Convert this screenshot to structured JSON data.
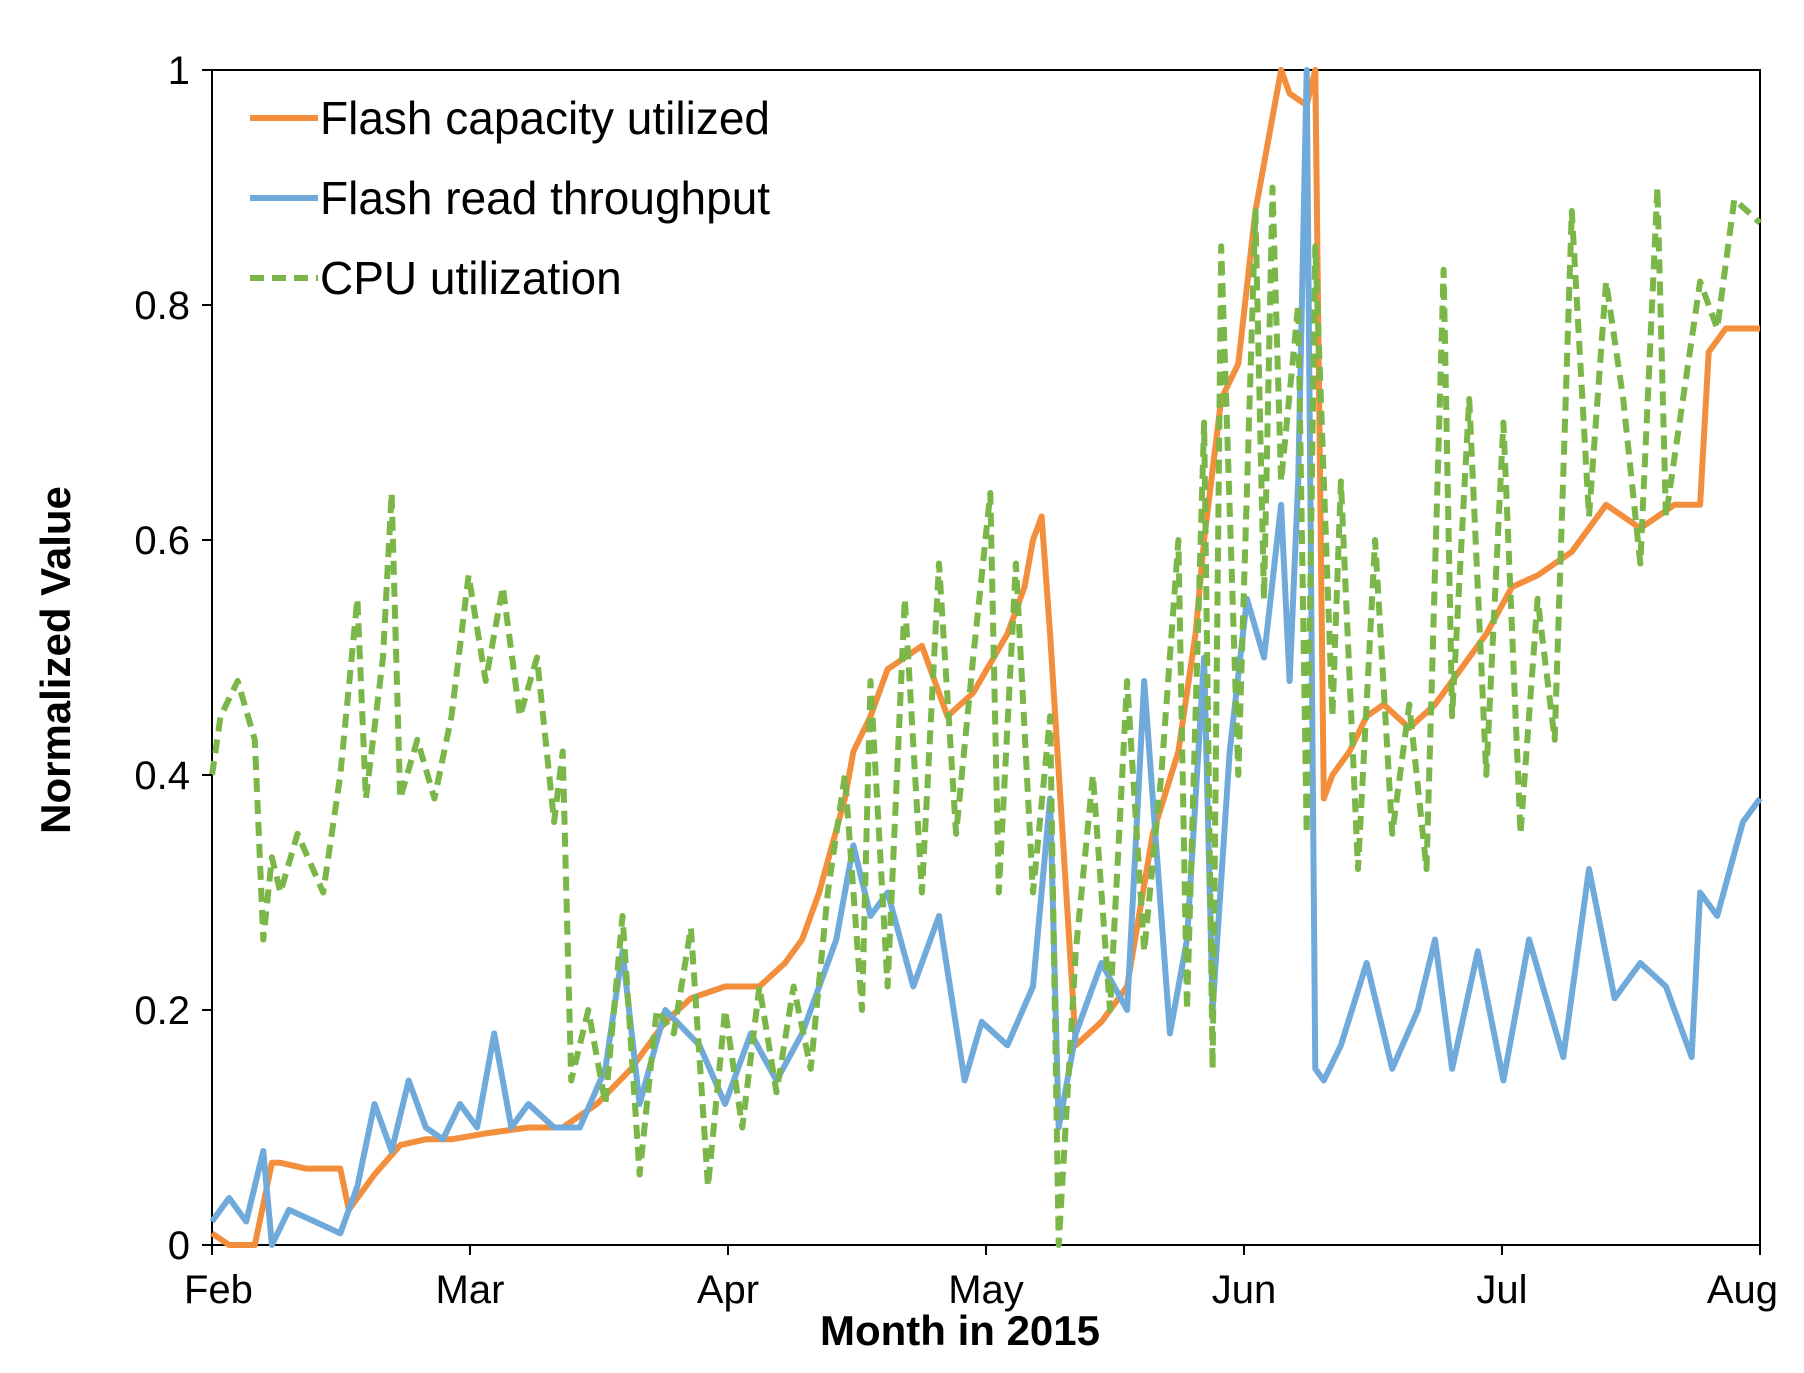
{
  "chart_data": {
    "type": "line",
    "title": "",
    "xlabel": "Month  in 2015",
    "ylabel": "Normalized Value",
    "x_ticks": [
      "Feb",
      "Mar",
      "Apr",
      "May",
      "Jun",
      "Jul",
      "Aug"
    ],
    "xlim": [
      "2015-02-01",
      "2015-08-01"
    ],
    "ylim": [
      0,
      1
    ],
    "y_ticks": [
      0,
      0.2,
      0.4,
      0.6,
      0.8,
      1
    ],
    "y_tick_labels": [
      "0",
      "0.2",
      "0.4",
      "0.6",
      "0.8",
      "1"
    ],
    "grid": false,
    "legend": "top-left",
    "series": [
      {
        "name": "Flash capacity utilized",
        "color": "#F28E3C",
        "style": "solid",
        "x": [
          "2015-02-01",
          "2015-02-03",
          "2015-02-06",
          "2015-02-08",
          "2015-02-09",
          "2015-02-12",
          "2015-02-16",
          "2015-02-17",
          "2015-02-20",
          "2015-02-23",
          "2015-02-26",
          "2015-03-01",
          "2015-03-05",
          "2015-03-10",
          "2015-03-14",
          "2015-03-18",
          "2015-03-22",
          "2015-03-26",
          "2015-03-29",
          "2015-04-02",
          "2015-04-06",
          "2015-04-09",
          "2015-04-11",
          "2015-04-13",
          "2015-04-16",
          "2015-04-17",
          "2015-04-19",
          "2015-04-21",
          "2015-04-23",
          "2015-04-25",
          "2015-04-28",
          "2015-05-01",
          "2015-05-05",
          "2015-05-07",
          "2015-05-08",
          "2015-05-09",
          "2015-05-10",
          "2015-05-13",
          "2015-05-16",
          "2015-05-19",
          "2015-05-22",
          "2015-05-25",
          "2015-05-27",
          "2015-05-28",
          "2015-05-30",
          "2015-06-01",
          "2015-06-03",
          "2015-06-05",
          "2015-06-06",
          "2015-06-07",
          "2015-06-09",
          "2015-06-10",
          "2015-06-11",
          "2015-06-12",
          "2015-06-14",
          "2015-06-16",
          "2015-06-18",
          "2015-06-21",
          "2015-06-24",
          "2015-06-27",
          "2015-06-30",
          "2015-07-03",
          "2015-07-06",
          "2015-07-10",
          "2015-07-14",
          "2015-07-18",
          "2015-07-22",
          "2015-07-25",
          "2015-07-26",
          "2015-07-28",
          "2015-08-01"
        ],
        "y": [
          0.01,
          0.0,
          0.0,
          0.07,
          0.07,
          0.065,
          0.065,
          0.03,
          0.06,
          0.085,
          0.09,
          0.09,
          0.095,
          0.1,
          0.1,
          0.12,
          0.15,
          0.19,
          0.21,
          0.22,
          0.22,
          0.24,
          0.26,
          0.3,
          0.38,
          0.42,
          0.45,
          0.49,
          0.5,
          0.51,
          0.45,
          0.47,
          0.52,
          0.56,
          0.6,
          0.62,
          0.52,
          0.17,
          0.19,
          0.22,
          0.35,
          0.42,
          0.52,
          0.6,
          0.72,
          0.75,
          0.88,
          0.96,
          1.0,
          0.98,
          0.97,
          1.0,
          0.38,
          0.4,
          0.42,
          0.45,
          0.46,
          0.44,
          0.46,
          0.49,
          0.52,
          0.56,
          0.57,
          0.59,
          0.63,
          0.61,
          0.63,
          0.63,
          0.76,
          0.78,
          0.78
        ]
      },
      {
        "name": "Flash read throughput",
        "color": "#6FAADB",
        "style": "solid",
        "x": [
          "2015-02-01",
          "2015-02-03",
          "2015-02-05",
          "2015-02-07",
          "2015-02-08",
          "2015-02-10",
          "2015-02-13",
          "2015-02-16",
          "2015-02-18",
          "2015-02-20",
          "2015-02-22",
          "2015-02-24",
          "2015-02-26",
          "2015-02-28",
          "2015-03-02",
          "2015-03-04",
          "2015-03-06",
          "2015-03-08",
          "2015-03-10",
          "2015-03-13",
          "2015-03-16",
          "2015-03-19",
          "2015-03-21",
          "2015-03-23",
          "2015-03-26",
          "2015-03-30",
          "2015-04-02",
          "2015-04-05",
          "2015-04-08",
          "2015-04-11",
          "2015-04-13",
          "2015-04-15",
          "2015-04-17",
          "2015-04-19",
          "2015-04-21",
          "2015-04-24",
          "2015-04-27",
          "2015-04-30",
          "2015-05-02",
          "2015-05-05",
          "2015-05-08",
          "2015-05-10",
          "2015-05-11",
          "2015-05-13",
          "2015-05-16",
          "2015-05-19",
          "2015-05-21",
          "2015-05-24",
          "2015-05-26",
          "2015-05-28",
          "2015-05-29",
          "2015-05-31",
          "2015-06-02",
          "2015-06-04",
          "2015-06-06",
          "2015-06-07",
          "2015-06-08",
          "2015-06-09",
          "2015-06-10",
          "2015-06-11",
          "2015-06-13",
          "2015-06-16",
          "2015-06-19",
          "2015-06-22",
          "2015-06-24",
          "2015-06-26",
          "2015-06-29",
          "2015-07-02",
          "2015-07-05",
          "2015-07-09",
          "2015-07-12",
          "2015-07-15",
          "2015-07-18",
          "2015-07-21",
          "2015-07-24",
          "2015-07-25",
          "2015-07-27",
          "2015-07-30",
          "2015-08-01"
        ],
        "y": [
          0.02,
          0.04,
          0.02,
          0.08,
          0.0,
          0.03,
          0.02,
          0.01,
          0.05,
          0.12,
          0.08,
          0.14,
          0.1,
          0.09,
          0.12,
          0.1,
          0.18,
          0.1,
          0.12,
          0.1,
          0.1,
          0.15,
          0.25,
          0.12,
          0.2,
          0.17,
          0.12,
          0.18,
          0.14,
          0.18,
          0.22,
          0.26,
          0.34,
          0.28,
          0.3,
          0.22,
          0.28,
          0.14,
          0.19,
          0.17,
          0.22,
          0.38,
          0.1,
          0.18,
          0.24,
          0.2,
          0.48,
          0.18,
          0.26,
          0.5,
          0.2,
          0.42,
          0.55,
          0.5,
          0.63,
          0.48,
          0.65,
          1.0,
          0.15,
          0.14,
          0.17,
          0.24,
          0.15,
          0.2,
          0.26,
          0.15,
          0.25,
          0.14,
          0.26,
          0.16,
          0.32,
          0.21,
          0.24,
          0.22,
          0.16,
          0.3,
          0.28,
          0.36,
          0.38
        ]
      },
      {
        "name": "CPU utilization",
        "color": "#7AB648",
        "style": "dashed",
        "x": [
          "2015-02-01",
          "2015-02-02",
          "2015-02-04",
          "2015-02-06",
          "2015-02-07",
          "2015-02-08",
          "2015-02-09",
          "2015-02-11",
          "2015-02-14",
          "2015-02-16",
          "2015-02-18",
          "2015-02-19",
          "2015-02-21",
          "2015-02-22",
          "2015-02-23",
          "2015-02-25",
          "2015-02-27",
          "2015-03-01",
          "2015-03-03",
          "2015-03-05",
          "2015-03-07",
          "2015-03-09",
          "2015-03-11",
          "2015-03-13",
          "2015-03-14",
          "2015-03-15",
          "2015-03-17",
          "2015-03-19",
          "2015-03-21",
          "2015-03-23",
          "2015-03-25",
          "2015-03-27",
          "2015-03-29",
          "2015-03-31",
          "2015-04-02",
          "2015-04-04",
          "2015-04-06",
          "2015-04-08",
          "2015-04-10",
          "2015-04-12",
          "2015-04-14",
          "2015-04-16",
          "2015-04-18",
          "2015-04-19",
          "2015-04-21",
          "2015-04-23",
          "2015-04-25",
          "2015-04-27",
          "2015-04-29",
          "2015-05-01",
          "2015-05-03",
          "2015-05-04",
          "2015-05-06",
          "2015-05-08",
          "2015-05-10",
          "2015-05-11",
          "2015-05-13",
          "2015-05-15",
          "2015-05-17",
          "2015-05-19",
          "2015-05-21",
          "2015-05-23",
          "2015-05-25",
          "2015-05-26",
          "2015-05-27",
          "2015-05-28",
          "2015-05-29",
          "2015-05-30",
          "2015-06-01",
          "2015-06-03",
          "2015-06-04",
          "2015-06-05",
          "2015-06-06",
          "2015-06-08",
          "2015-06-09",
          "2015-06-10",
          "2015-06-12",
          "2015-06-13",
          "2015-06-15",
          "2015-06-17",
          "2015-06-19",
          "2015-06-21",
          "2015-06-23",
          "2015-06-25",
          "2015-06-26",
          "2015-06-28",
          "2015-06-30",
          "2015-07-02",
          "2015-07-04",
          "2015-07-06",
          "2015-07-08",
          "2015-07-10",
          "2015-07-12",
          "2015-07-14",
          "2015-07-16",
          "2015-07-18",
          "2015-07-20",
          "2015-07-21",
          "2015-07-23",
          "2015-07-25",
          "2015-07-27",
          "2015-07-29",
          "2015-08-01"
        ],
        "y": [
          0.4,
          0.45,
          0.48,
          0.43,
          0.26,
          0.33,
          0.3,
          0.35,
          0.3,
          0.4,
          0.55,
          0.38,
          0.5,
          0.64,
          0.38,
          0.43,
          0.38,
          0.45,
          0.57,
          0.48,
          0.56,
          0.45,
          0.5,
          0.36,
          0.42,
          0.14,
          0.2,
          0.12,
          0.28,
          0.06,
          0.2,
          0.18,
          0.27,
          0.05,
          0.2,
          0.1,
          0.22,
          0.13,
          0.22,
          0.15,
          0.3,
          0.4,
          0.2,
          0.48,
          0.22,
          0.55,
          0.3,
          0.58,
          0.35,
          0.5,
          0.64,
          0.3,
          0.58,
          0.3,
          0.45,
          0.0,
          0.25,
          0.4,
          0.2,
          0.48,
          0.25,
          0.4,
          0.6,
          0.2,
          0.45,
          0.7,
          0.15,
          0.85,
          0.4,
          0.88,
          0.55,
          0.9,
          0.65,
          0.8,
          0.35,
          0.85,
          0.45,
          0.65,
          0.32,
          0.6,
          0.35,
          0.46,
          0.32,
          0.83,
          0.45,
          0.72,
          0.4,
          0.7,
          0.35,
          0.55,
          0.43,
          0.88,
          0.62,
          0.82,
          0.72,
          0.58,
          0.9,
          0.62,
          0.72,
          0.82,
          0.78,
          0.89,
          0.87
        ]
      }
    ]
  }
}
